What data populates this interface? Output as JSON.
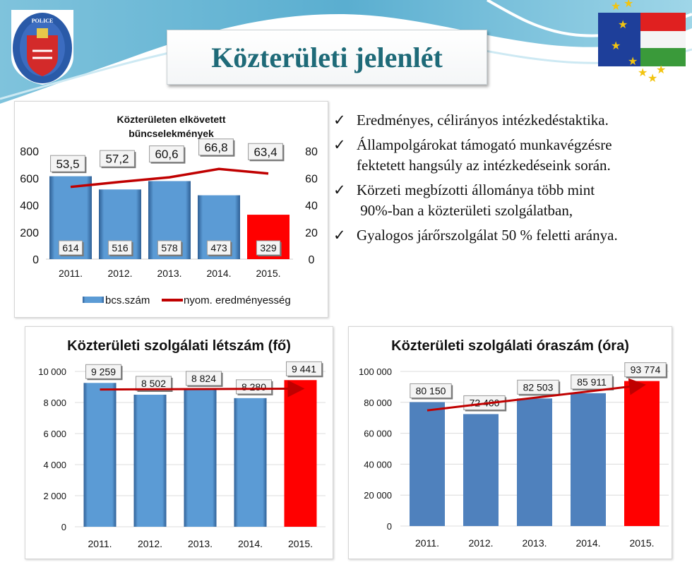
{
  "slide": {
    "title": "Közterületi jelenlét",
    "logo_text": "RENDŐRSÉG POLICE",
    "colors": {
      "bar_blue": "#5b9bd5",
      "bar_blue_dark": "#4f81bd",
      "highlight_red": "#ff0000",
      "line_red": "#c00000",
      "title_teal": "#1e6a78"
    }
  },
  "bullets": [
    {
      "icon": "check-icon",
      "lines": [
        "Eredményes, célirányos intézkedéstaktika."
      ]
    },
    {
      "icon": "check-icon",
      "lines": [
        "Állampolgárokat támogató munkavégzésre",
        "fektetett hangsúly az intézkedéseink során."
      ]
    },
    {
      "icon": "check-icon",
      "lines": [
        "Körzeti megbízotti állománya több mint",
        " 90%-ban a közterületi szolgálatban,"
      ]
    },
    {
      "icon": "check-icon",
      "lines": [
        "Gyalogos járőrszolgálat 50 % feletti aránya."
      ]
    }
  ],
  "chart_data": [
    {
      "type": "bar+line",
      "title": "Közterületen elkövetett bűncselekmények",
      "title_lines": [
        "Közterületen elkövetett",
        "bűncselekmények"
      ],
      "categories": [
        "2011.",
        "2012.",
        "2013.",
        "2014.",
        "2015."
      ],
      "series": [
        {
          "name": "bcs.szám",
          "type": "bar",
          "axis": "left",
          "values": [
            614,
            516,
            578,
            473,
            329
          ],
          "labels": [
            "614",
            "516",
            "578",
            "473",
            "329"
          ],
          "highlight_index": 4
        },
        {
          "name": "nyom. eredményesség",
          "type": "line",
          "axis": "right",
          "values": [
            53.5,
            57.2,
            60.6,
            66.8,
            63.4
          ],
          "labels": [
            "53,5",
            "57,2",
            "60,6",
            "66,8",
            "63,4"
          ]
        }
      ],
      "y_left": {
        "range": [
          0,
          800
        ],
        "ticks": [
          "0",
          "200",
          "400",
          "600",
          "800"
        ]
      },
      "y_right": {
        "range": [
          0,
          80
        ],
        "ticks": [
          "0",
          "20",
          "40",
          "60",
          "80"
        ]
      },
      "grid": false,
      "legend": "bottom"
    },
    {
      "type": "bar",
      "title": "Közterületi szolgálati létszám (fő)",
      "categories": [
        "2011.",
        "2012.",
        "2013.",
        "2014.",
        "2015."
      ],
      "values": [
        9259,
        8502,
        8824,
        8280,
        9441
      ],
      "labels": [
        "9 259",
        "8 502",
        "8 824",
        "8 280",
        "9 441"
      ],
      "highlight_index": 4,
      "trendline": "linear",
      "ylim": [
        0,
        10000
      ],
      "y_ticks": [
        "0",
        "2 000",
        "4 000",
        "6 000",
        "8 000",
        "10 000"
      ],
      "grid": true
    },
    {
      "type": "bar",
      "title": "Közterületi szolgálati óraszám (óra)",
      "categories": [
        "2011.",
        "2012.",
        "2013.",
        "2014.",
        "2015."
      ],
      "values": [
        80150,
        72400,
        82503,
        85911,
        93774
      ],
      "labels": [
        "80 150",
        "72 400",
        "82 503",
        "85 911",
        "93 774"
      ],
      "highlight_index": 4,
      "trendline": "linear",
      "ylim": [
        0,
        100000
      ],
      "y_ticks": [
        "0",
        "20 000",
        "40 000",
        "60 000",
        "80 000",
        "100 000"
      ],
      "grid": true
    }
  ]
}
